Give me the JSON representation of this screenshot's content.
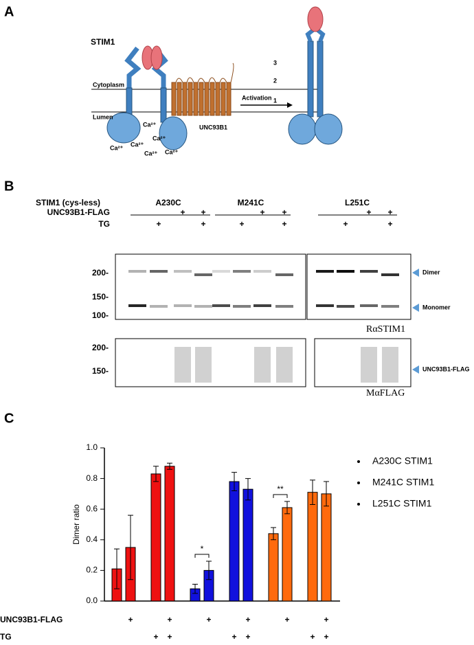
{
  "panel_a": {
    "label": "A",
    "stim1": "STIM1",
    "cytoplasm": "Cytoplasm",
    "lumen": "Lumen",
    "unc93b1": "UNC93B1",
    "activation": "Activation",
    "domains": [
      "3",
      "2",
      "1"
    ],
    "calcium": "Ca²⁺"
  },
  "panel_b": {
    "label": "B",
    "construct_title": "STIM1 (cys-less)",
    "constructs": [
      "A230C",
      "M241C",
      "L251C"
    ],
    "lane_rows": [
      {
        "label": "UNC93B1-FLAG",
        "marks": [
          null,
          null,
          "+",
          "+"
        ]
      },
      {
        "label": "TG",
        "marks": [
          null,
          "+",
          null,
          "+"
        ]
      }
    ],
    "markers_top": [
      "200-",
      "150-",
      "100-"
    ],
    "markers_bottom": [
      "200-",
      "150-"
    ],
    "dimer": "Dimer",
    "monomer": "Monomer",
    "antibody_top": "RαSTIM1",
    "antibody_bottom": "MαFLAG",
    "flag_band": "UNC93B1-FLAG"
  },
  "chart_data": {
    "type": "bar",
    "label": "C",
    "y_label": "Dimer ratio",
    "ylim": [
      0,
      1
    ],
    "yticks": [
      {
        "value": 0,
        "label": "0.0"
      },
      {
        "value": 0.2,
        "label": "0.2"
      },
      {
        "value": 0.4,
        "label": "0.4"
      },
      {
        "value": 0.6,
        "label": "0.6"
      },
      {
        "value": 0.8,
        "label": "0.8"
      },
      {
        "value": 1,
        "label": "1.0"
      }
    ],
    "series": [
      {
        "name": "A230C STIM1",
        "color": "#ee1111",
        "values": [
          0.21,
          0.35,
          0.83,
          0.88
        ],
        "errors": [
          0.13,
          0.21,
          0.05,
          0.02
        ]
      },
      {
        "name": "M241C STIM1",
        "color": "#1111dd",
        "values": [
          0.08,
          0.2,
          0.78,
          0.73
        ],
        "errors": [
          0.03,
          0.06,
          0.06,
          0.07
        ]
      },
      {
        "name": "L251C STIM1",
        "color": "#ff6a0d",
        "values": [
          0.44,
          0.61,
          0.71,
          0.7
        ],
        "errors": [
          0.04,
          0.04,
          0.08,
          0.08
        ]
      }
    ],
    "condition_rows": [
      {
        "label": "UNC93B1-FLAG",
        "marks": [
          null,
          "+",
          null,
          "+"
        ]
      },
      {
        "label": "TG",
        "marks": [
          null,
          null,
          "+",
          "+"
        ]
      }
    ],
    "annotations": [
      {
        "text": "*",
        "series": 1,
        "bars": [
          0,
          1
        ]
      },
      {
        "text": "**",
        "series": 2,
        "bars": [
          0,
          1
        ]
      }
    ]
  }
}
